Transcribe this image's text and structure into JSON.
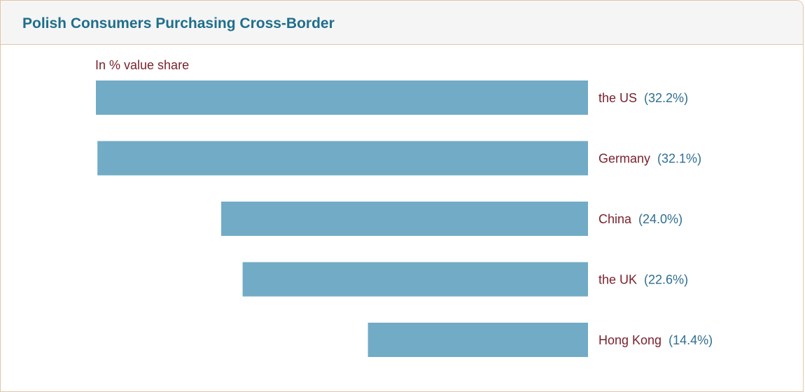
{
  "header": {
    "title": "Polish Consumers Purchasing Cross-Border"
  },
  "chart_data": {
    "type": "bar",
    "orientation": "horizontal",
    "bar_direction": "right-aligned",
    "unit_note": "In % value share",
    "categories": [
      "the US",
      "Germany",
      "China",
      "the UK",
      "Hong Kong"
    ],
    "values": [
      32.2,
      32.1,
      24.0,
      22.6,
      14.4
    ],
    "value_labels": [
      "(32.2%)",
      "(32.1%)",
      "(24.0%)",
      "(22.6%)",
      "(14.4%)"
    ],
    "xlim": [
      0,
      32.2
    ],
    "grid": false,
    "legend": "none",
    "colors": {
      "bar": "#72abc5",
      "category_text": "#7a1f2b",
      "value_text": "#2f6f90",
      "title": "#1f6e8c"
    }
  }
}
